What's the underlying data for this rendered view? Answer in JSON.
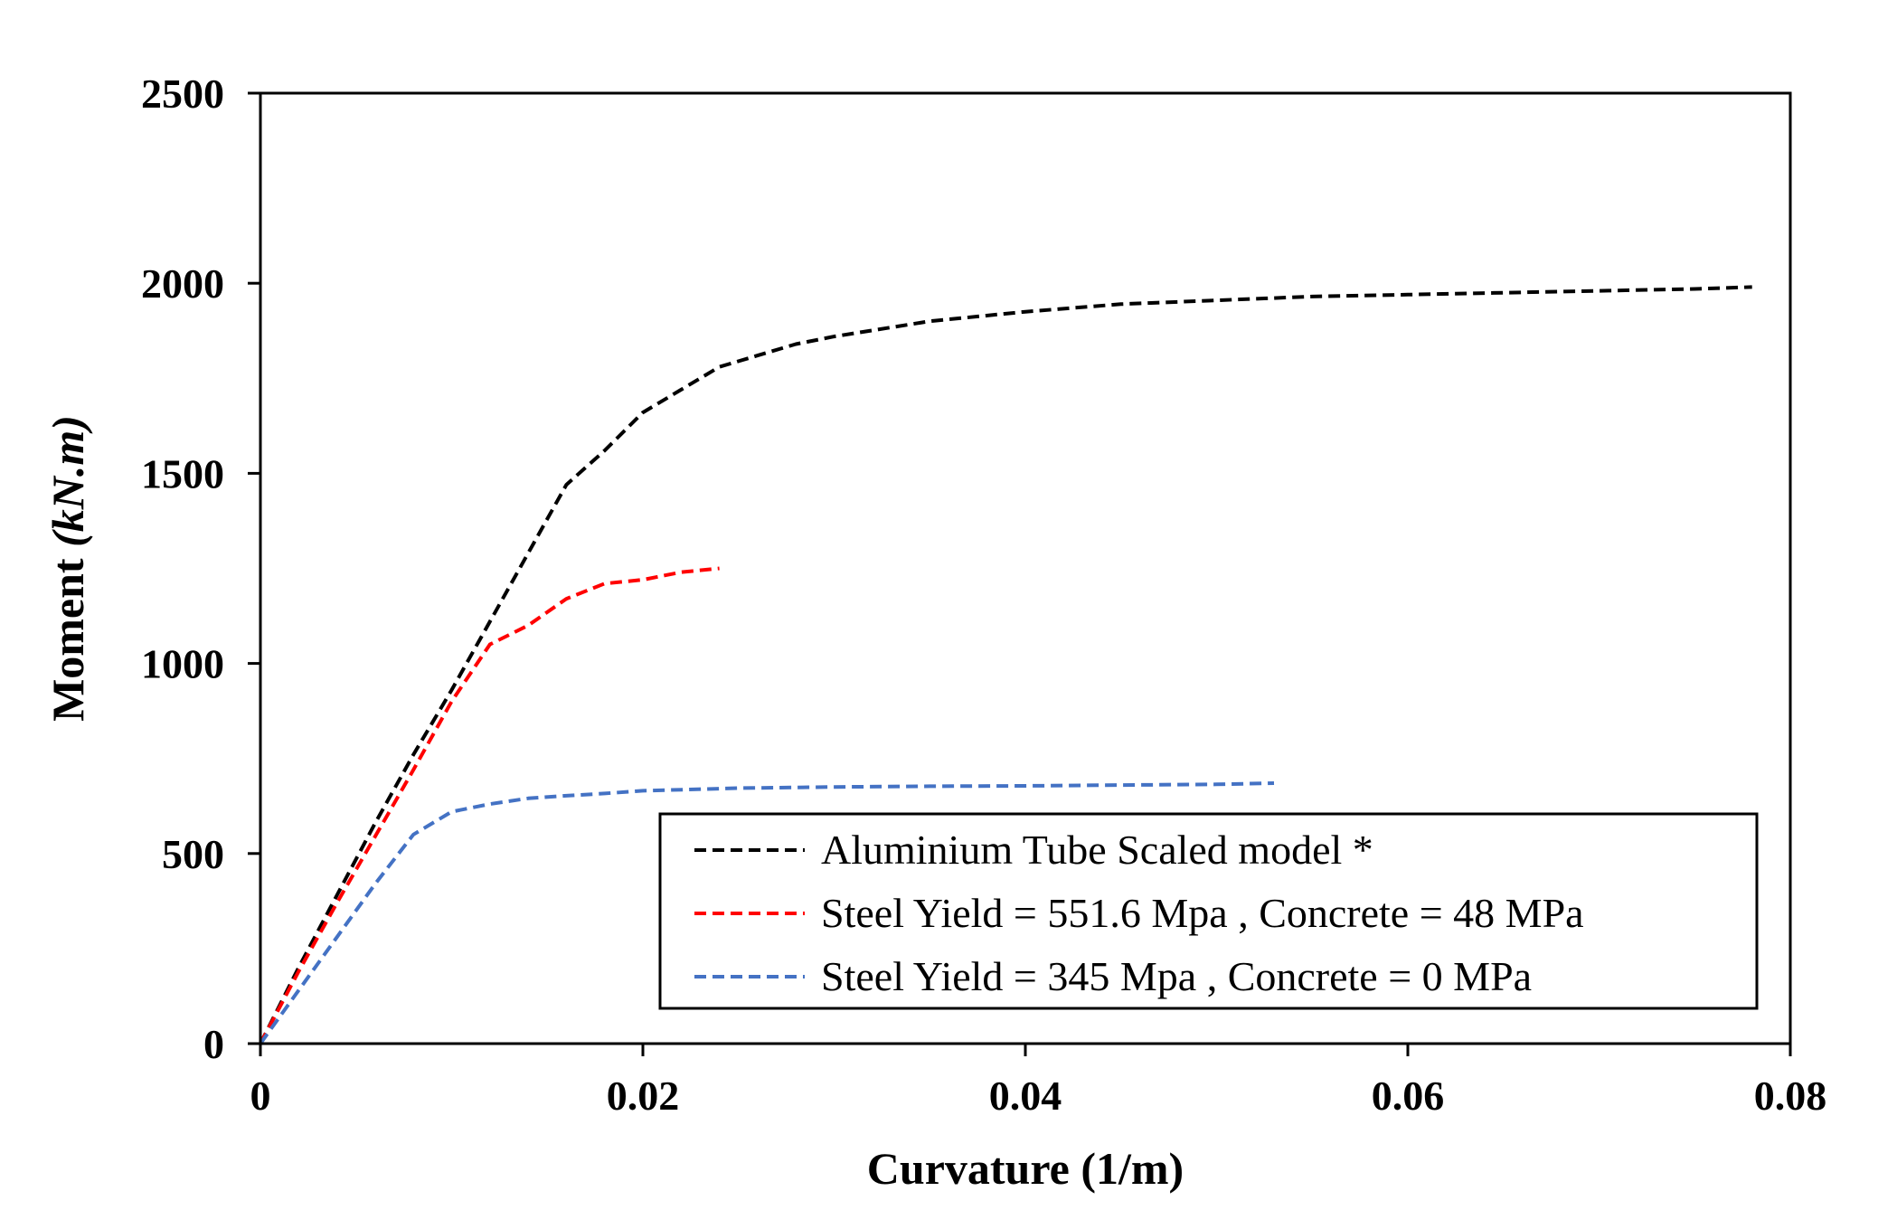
{
  "chart_data": {
    "type": "line",
    "title": "",
    "xlabel": "Curvature  (1/m)",
    "ylabel_prefix": "Moment ",
    "ylabel_units": "(kN.m)",
    "xlim": [
      0,
      0.08
    ],
    "ylim": [
      0,
      2500
    ],
    "x_ticks": [
      0,
      0.02,
      0.04,
      0.06,
      0.08
    ],
    "x_tick_labels": [
      "0",
      "0.02",
      "0.04",
      "0.06",
      "0.08"
    ],
    "y_ticks": [
      0,
      500,
      1000,
      1500,
      2000,
      2500
    ],
    "y_tick_labels": [
      "0",
      "500",
      "1000",
      "1500",
      "2000",
      "2500"
    ],
    "grid": false,
    "legend_position": "bottom-right",
    "series": [
      {
        "name": "Aluminium Tube Scaled model *",
        "color": "#000000",
        "style": "dashed",
        "x": [
          0,
          0.002,
          0.004,
          0.006,
          0.008,
          0.01,
          0.012,
          0.014,
          0.016,
          0.018,
          0.02,
          0.022,
          0.024,
          0.026,
          0.028,
          0.03,
          0.035,
          0.04,
          0.045,
          0.05,
          0.055,
          0.06,
          0.065,
          0.07,
          0.075,
          0.078
        ],
        "y": [
          0,
          200,
          390,
          580,
          760,
          930,
          1110,
          1290,
          1470,
          1560,
          1660,
          1720,
          1780,
          1810,
          1840,
          1860,
          1900,
          1925,
          1945,
          1955,
          1965,
          1970,
          1975,
          1980,
          1985,
          1990
        ]
      },
      {
        "name": "Steel Yield = 551.6 Mpa , Concrete = 48 MPa",
        "color": "#ff0000",
        "style": "dashed",
        "x": [
          0,
          0.002,
          0.004,
          0.006,
          0.008,
          0.01,
          0.012,
          0.014,
          0.016,
          0.018,
          0.019,
          0.02,
          0.022,
          0.024
        ],
        "y": [
          0,
          190,
          370,
          545,
          720,
          900,
          1050,
          1100,
          1170,
          1210,
          1215,
          1220,
          1240,
          1250
        ]
      },
      {
        "name": "Steel Yield = 345 Mpa , Concrete = 0 MPa",
        "color": "#4472c4",
        "style": "dashed",
        "x": [
          0,
          0.002,
          0.004,
          0.006,
          0.008,
          0.01,
          0.012,
          0.014,
          0.016,
          0.018,
          0.02,
          0.025,
          0.03,
          0.035,
          0.04,
          0.045,
          0.05,
          0.053
        ],
        "y": [
          0,
          140,
          280,
          420,
          550,
          610,
          630,
          645,
          652,
          658,
          665,
          672,
          675,
          677,
          678,
          680,
          682,
          685
        ]
      }
    ]
  }
}
